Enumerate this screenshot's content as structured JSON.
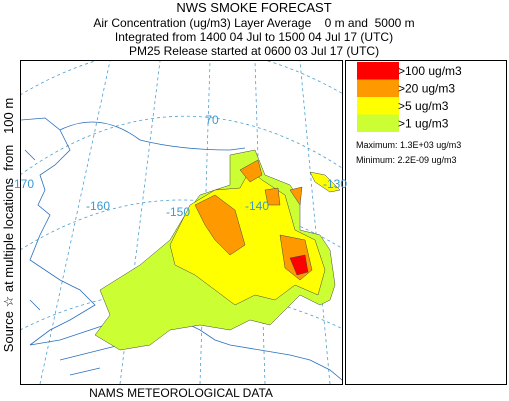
{
  "header": {
    "title": "NWS SMOKE FORECAST",
    "line1": "Air Concentration (ug/m3) Layer Average    0 m and  5000 m",
    "line2": "Integrated from 1400 04 Jul to 1500 04 Jul 17 (UTC)",
    "line3": "PM25 Release started at 0600 03 Jul 17 (UTC)"
  },
  "side_label": "Source ☆ at multiple locations  from   100 m",
  "map_labels": [
    "70",
    "-170",
    "-160",
    "-150",
    "-140",
    "-130"
  ],
  "legend": [
    {
      "label": ">100 ug/m3",
      "color": "#ff0000"
    },
    {
      "label": ">20 ug/m3",
      "color": "#ff9900"
    },
    {
      "label": ">5 ug/m3",
      "color": "#ffff00"
    },
    {
      "label": ">1 ug/m3",
      "color": "#ccff33"
    }
  ],
  "maximum": "Maximum: 1.3E+03 ug/m3",
  "minimum": "Minimum: 2.2E-09 ug/m3",
  "footer": "NAMS METEOROLOGICAL DATA"
}
